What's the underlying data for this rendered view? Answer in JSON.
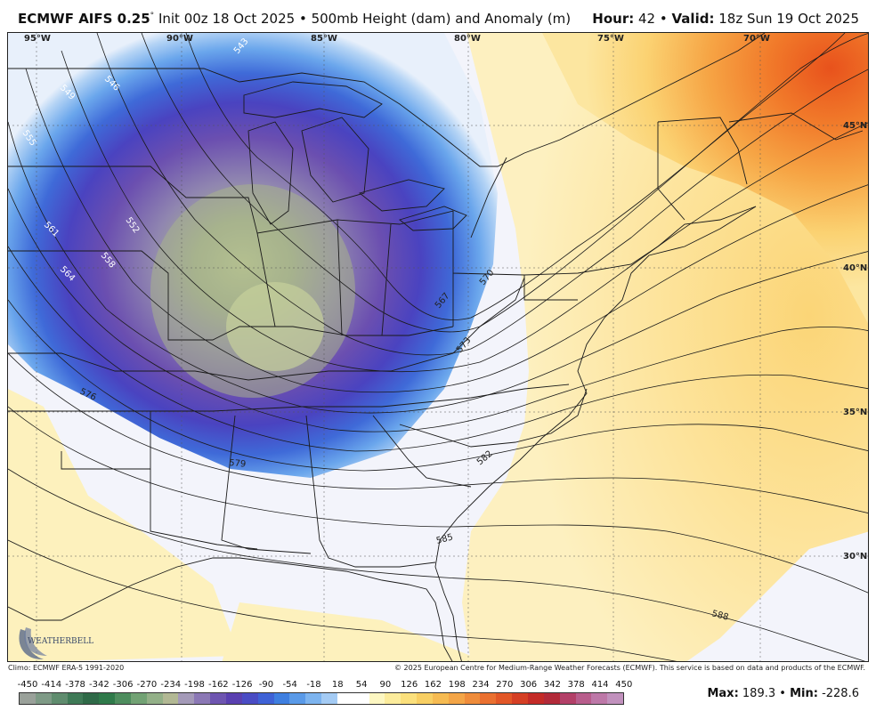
{
  "header": {
    "model": "ECMWF AIFS 0.25",
    "degree": "°",
    "init": "Init 00z 18 Oct 2025",
    "sep": "•",
    "field": "500mb Height (dam) and Anomaly (m)",
    "hour_label": "Hour:",
    "hour_value": "42",
    "valid_label": "Valid:",
    "valid_value": "18z Sun 19 Oct 2025"
  },
  "map": {
    "lon_labels": [
      "95°W",
      "90°W",
      "85°W",
      "80°W",
      "75°W",
      "70°W"
    ],
    "lat_labels": [
      "45°N",
      "40°N",
      "35°N",
      "30°N"
    ],
    "contour_labels": [
      "543",
      "546",
      "549",
      "552",
      "555",
      "558",
      "561",
      "564",
      "567",
      "570",
      "573",
      "576",
      "579",
      "582",
      "585",
      "588"
    ],
    "watermark": "WEATHERBELL",
    "colors": {
      "ocean_warm": "#fde9a6",
      "land_neutral": "#f2f3fb",
      "trough_dark": "#5a3fa8",
      "trough_core": "#b0c08f",
      "ridge_hot": "#ee5a1a"
    }
  },
  "footer": {
    "climo": "Climo: ECMWF ERA-5 1991-2020",
    "copyright": "© 2025 European Centre for Medium-Range Weather Forecasts (ECMWF). This service is based on data and products of the ECMWF."
  },
  "colorbar": {
    "ticks": [
      "-450",
      "-414",
      "-378",
      "-342",
      "-306",
      "-270",
      "-234",
      "-198",
      "-162",
      "-126",
      "-90",
      "-54",
      "-18",
      "18",
      "54",
      "90",
      "126",
      "162",
      "198",
      "234",
      "270",
      "306",
      "342",
      "378",
      "414",
      "450"
    ],
    "colors": [
      "#9aa19a",
      "#7e9a86",
      "#5f8c6e",
      "#3f7a57",
      "#2f6a48",
      "#2f7a4a",
      "#4e8d5e",
      "#72a274",
      "#93b088",
      "#b2b894",
      "#a49ab8",
      "#8b78b5",
      "#6e55b0",
      "#5a40b0",
      "#4a4cc4",
      "#3f62d6",
      "#3f7fe0",
      "#5a9ae8",
      "#7db4ef",
      "#a4cbf4",
      "#ffffff",
      "#ffffff",
      "#fdf7c2",
      "#fcec9c",
      "#fbe07c",
      "#f8cf63",
      "#f6bb52",
      "#f3a547",
      "#ef8c3b",
      "#ea7030",
      "#e25727",
      "#d53f24",
      "#c42b27",
      "#b22a39",
      "#b34068",
      "#b85d8c",
      "#bd78a8",
      "#c191bd"
    ]
  },
  "stats": {
    "max_label": "Max:",
    "max_value": "189.3",
    "sep": "•",
    "min_label": "Min:",
    "min_value": "-228.6"
  }
}
